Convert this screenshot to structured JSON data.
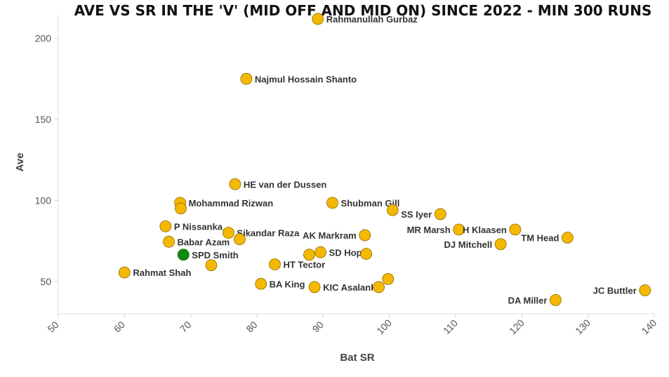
{
  "chart_data": {
    "type": "scatter",
    "title": "AVE VS SR IN THE 'V' (MID OFF AND MID ON) SINCE 2022 - MIN 300 RUNS",
    "xlabel": "Bat SR",
    "ylabel": "Ave",
    "xlim": [
      50,
      140
    ],
    "ylim": [
      30,
      215
    ],
    "xticks": [
      50,
      60,
      70,
      80,
      90,
      100,
      110,
      120,
      130,
      140
    ],
    "yticks": [
      50,
      100,
      150,
      200
    ],
    "default_color": "#F5B800",
    "highlight_color": "#0E8A0E",
    "points": [
      {
        "name": "Rahmanullah Gurbaz",
        "x": 89.2,
        "y": 212,
        "label": "right"
      },
      {
        "name": "Najmul Hossain Shanto",
        "x": 78.4,
        "y": 175,
        "label": "right"
      },
      {
        "name": "HE van der Dussen",
        "x": 76.7,
        "y": 110,
        "label": "right"
      },
      {
        "name": "Mohammad Rizwan",
        "x": 68.4,
        "y": 98.5,
        "label": "right"
      },
      {
        "name": "",
        "x": 68.5,
        "y": 95,
        "label": "none"
      },
      {
        "name": "Shubman Gill",
        "x": 91.4,
        "y": 98.5,
        "label": "right"
      },
      {
        "name": "",
        "x": 100.5,
        "y": 94,
        "label": "none"
      },
      {
        "name": "SS Iyer",
        "x": 107.7,
        "y": 91.5,
        "label": "left"
      },
      {
        "name": "P Nissanka",
        "x": 66.2,
        "y": 84,
        "label": "right"
      },
      {
        "name": "Sikandar Raza",
        "x": 75.7,
        "y": 80,
        "label": "right"
      },
      {
        "name": "",
        "x": 77.4,
        "y": 76,
        "label": "none"
      },
      {
        "name": "AK Markram",
        "x": 96.3,
        "y": 78.5,
        "label": "left"
      },
      {
        "name": "MR Marsh",
        "x": 110.5,
        "y": 82,
        "label": "left"
      },
      {
        "name": "H Klaasen",
        "x": 119,
        "y": 82,
        "label": "left"
      },
      {
        "name": "TM Head",
        "x": 126.9,
        "y": 77,
        "label": "left"
      },
      {
        "name": "DJ Mitchell",
        "x": 116.8,
        "y": 73,
        "label": "left"
      },
      {
        "name": "Babar Azam",
        "x": 66.7,
        "y": 74.5,
        "label": "right"
      },
      {
        "name": "SPD Smith",
        "x": 68.9,
        "y": 66.5,
        "label": "right",
        "highlight": true
      },
      {
        "name": "",
        "x": 73.1,
        "y": 60,
        "label": "none"
      },
      {
        "name": "HT Tector",
        "x": 82.7,
        "y": 60.5,
        "label": "right"
      },
      {
        "name": "",
        "x": 87.9,
        "y": 66.5,
        "label": "none"
      },
      {
        "name": "SD Hope",
        "x": 89.6,
        "y": 68,
        "label": "right"
      },
      {
        "name": "",
        "x": 96.5,
        "y": 67,
        "label": "none"
      },
      {
        "name": "Rahmat Shah",
        "x": 60.0,
        "y": 55.5,
        "label": "right"
      },
      {
        "name": "BA King",
        "x": 80.6,
        "y": 48.5,
        "label": "right"
      },
      {
        "name": "KIC Asalanka",
        "x": 88.7,
        "y": 46.5,
        "label": "right"
      },
      {
        "name": "",
        "x": 98.4,
        "y": 46.5,
        "label": "none"
      },
      {
        "name": "",
        "x": 99.8,
        "y": 51.5,
        "label": "none"
      },
      {
        "name": "DA Miller",
        "x": 125.1,
        "y": 38.5,
        "label": "left"
      },
      {
        "name": "JC Buttler",
        "x": 138.6,
        "y": 44.5,
        "label": "left"
      }
    ]
  }
}
